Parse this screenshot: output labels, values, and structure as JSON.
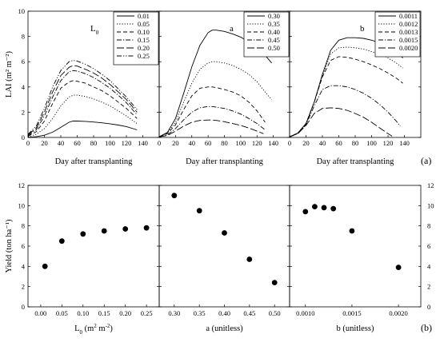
{
  "chart_data": [
    {
      "type": "line",
      "panel_label": "L",
      "panel_label_sub": "0",
      "xlabel": "Day after transplanting",
      "ylabel": "LAI (m² m⁻²)",
      "xlim": [
        0,
        160
      ],
      "ylim": [
        0,
        10
      ],
      "xticks": [
        0,
        20,
        40,
        60,
        80,
        100,
        120,
        140
      ],
      "yticks": [
        0,
        2,
        4,
        6,
        8,
        10
      ],
      "legend_position": "top-right",
      "series": [
        {
          "name": "0.01",
          "dash": "solid",
          "x": [
            0,
            10,
            20,
            30,
            40,
            50,
            55,
            60,
            70,
            80,
            90,
            100,
            110,
            120,
            133
          ],
          "y": [
            0.01,
            0.06,
            0.18,
            0.42,
            0.8,
            1.2,
            1.3,
            1.3,
            1.27,
            1.22,
            1.16,
            1.08,
            0.98,
            0.86,
            0.6
          ]
        },
        {
          "name": "0.05",
          "dash": "dot",
          "x": [
            0,
            10,
            20,
            30,
            40,
            50,
            55,
            60,
            70,
            80,
            90,
            100,
            110,
            120,
            133
          ],
          "y": [
            0.05,
            0.25,
            0.7,
            1.5,
            2.5,
            3.2,
            3.35,
            3.35,
            3.25,
            3.05,
            2.8,
            2.5,
            2.1,
            1.7,
            1.1
          ]
        },
        {
          "name": "0.10",
          "dash": "dash",
          "x": [
            0,
            10,
            20,
            30,
            40,
            50,
            55,
            60,
            70,
            80,
            90,
            100,
            110,
            120,
            133
          ],
          "y": [
            0.1,
            0.45,
            1.3,
            2.7,
            3.9,
            4.4,
            4.5,
            4.45,
            4.3,
            4.0,
            3.7,
            3.3,
            2.8,
            2.3,
            1.5
          ]
        },
        {
          "name": "0.15",
          "dash": "dashdot",
          "x": [
            0,
            10,
            20,
            30,
            40,
            50,
            55,
            60,
            70,
            80,
            90,
            100,
            110,
            120,
            133
          ],
          "y": [
            0.15,
            0.6,
            1.7,
            3.2,
            4.5,
            5.2,
            5.3,
            5.25,
            5.05,
            4.75,
            4.35,
            3.9,
            3.35,
            2.75,
            1.8
          ]
        },
        {
          "name": "0.20",
          "dash": "longdash",
          "x": [
            0,
            10,
            20,
            30,
            40,
            50,
            55,
            60,
            70,
            80,
            90,
            100,
            110,
            120,
            133
          ],
          "y": [
            0.2,
            0.75,
            2.0,
            3.6,
            4.9,
            5.55,
            5.7,
            5.65,
            5.4,
            5.1,
            4.7,
            4.2,
            3.6,
            3.0,
            2.0
          ]
        },
        {
          "name": "0.25",
          "dash": "dashdotdot",
          "x": [
            0,
            10,
            20,
            30,
            40,
            50,
            55,
            60,
            70,
            80,
            90,
            100,
            110,
            120,
            133
          ],
          "y": [
            0.25,
            0.9,
            2.3,
            4.0,
            5.3,
            6.0,
            6.1,
            6.05,
            5.8,
            5.45,
            5.0,
            4.5,
            3.85,
            3.2,
            2.2
          ]
        }
      ]
    },
    {
      "type": "line",
      "panel_label": "a",
      "xlabel": "Day after transplanting",
      "xlim": [
        0,
        160
      ],
      "ylim": [
        0,
        10
      ],
      "xticks": [
        0,
        20,
        40,
        60,
        80,
        100,
        120,
        140
      ],
      "yticks": [
        0,
        2,
        4,
        6,
        8,
        10
      ],
      "legend_position": "top-right",
      "series": [
        {
          "name": "0.30",
          "dash": "solid",
          "x": [
            0,
            10,
            20,
            30,
            40,
            50,
            60,
            65,
            70,
            80,
            90,
            100,
            110,
            120,
            130,
            138
          ],
          "y": [
            0.05,
            0.4,
            1.5,
            3.5,
            5.6,
            7.3,
            8.3,
            8.5,
            8.5,
            8.4,
            8.2,
            7.95,
            7.55,
            7.1,
            6.5,
            5.9
          ]
        },
        {
          "name": "0.35",
          "dash": "dot",
          "x": [
            0,
            10,
            20,
            30,
            40,
            50,
            60,
            65,
            70,
            80,
            90,
            100,
            110,
            120,
            130,
            138
          ],
          "y": [
            0.05,
            0.35,
            1.2,
            2.8,
            4.3,
            5.4,
            5.9,
            6.0,
            6.0,
            5.9,
            5.7,
            5.4,
            5.0,
            4.4,
            3.6,
            3.0
          ]
        },
        {
          "name": "0.40",
          "dash": "dash",
          "x": [
            0,
            10,
            20,
            30,
            40,
            50,
            60,
            65,
            70,
            80,
            90,
            100,
            110,
            120,
            130
          ],
          "y": [
            0.05,
            0.3,
            1.0,
            2.2,
            3.3,
            3.9,
            4.0,
            4.0,
            3.95,
            3.8,
            3.6,
            3.3,
            2.8,
            2.1,
            1.2
          ]
        },
        {
          "name": "0.45",
          "dash": "dashdot",
          "x": [
            0,
            10,
            20,
            30,
            40,
            50,
            60,
            65,
            70,
            80,
            90,
            100,
            110,
            120,
            130
          ],
          "y": [
            0.05,
            0.2,
            0.7,
            1.4,
            2.0,
            2.35,
            2.45,
            2.45,
            2.4,
            2.3,
            2.1,
            1.85,
            1.5,
            1.1,
            0.6
          ]
        },
        {
          "name": "0.50",
          "dash": "longdash",
          "x": [
            0,
            10,
            20,
            30,
            40,
            50,
            60,
            65,
            70,
            80,
            90,
            100,
            110,
            120,
            128
          ],
          "y": [
            0.05,
            0.15,
            0.5,
            0.9,
            1.2,
            1.35,
            1.38,
            1.38,
            1.35,
            1.25,
            1.1,
            0.95,
            0.75,
            0.5,
            0.3
          ]
        }
      ]
    },
    {
      "type": "line",
      "panel_label": "b",
      "xlabel": "Day after transplanting",
      "xlim": [
        0,
        160
      ],
      "ylim": [
        0,
        10
      ],
      "xticks": [
        0,
        20,
        40,
        60,
        80,
        100,
        120,
        140
      ],
      "yticks": [
        0,
        2,
        4,
        6,
        8,
        10
      ],
      "legend_position": "top-right",
      "series": [
        {
          "name": "0.0011",
          "dash": "solid",
          "x": [
            0,
            10,
            20,
            30,
            40,
            50,
            60,
            70,
            80,
            90,
            100,
            110,
            120,
            130,
            138
          ],
          "y": [
            0.05,
            0.35,
            1.1,
            2.8,
            5.0,
            6.9,
            7.7,
            7.9,
            7.9,
            7.85,
            7.7,
            7.5,
            7.2,
            6.8,
            6.3
          ]
        },
        {
          "name": "0.0012",
          "dash": "dot",
          "x": [
            0,
            10,
            20,
            30,
            40,
            50,
            60,
            70,
            80,
            90,
            100,
            110,
            120,
            130,
            138
          ],
          "y": [
            0.05,
            0.35,
            1.1,
            2.8,
            4.9,
            6.6,
            7.1,
            7.15,
            7.1,
            7.0,
            6.8,
            6.6,
            6.3,
            5.9,
            5.5
          ]
        },
        {
          "name": "0.0013",
          "dash": "dash",
          "x": [
            0,
            10,
            20,
            30,
            40,
            50,
            60,
            70,
            80,
            90,
            100,
            110,
            120,
            130,
            138
          ],
          "y": [
            0.05,
            0.35,
            1.1,
            2.8,
            4.8,
            6.1,
            6.4,
            6.35,
            6.2,
            6.0,
            5.75,
            5.45,
            5.1,
            4.7,
            4.3
          ]
        },
        {
          "name": "0.0015",
          "dash": "dashdot",
          "x": [
            0,
            10,
            20,
            30,
            40,
            50,
            60,
            70,
            80,
            90,
            100,
            110,
            120,
            130,
            135
          ],
          "y": [
            0.05,
            0.3,
            1.0,
            2.5,
            3.8,
            4.1,
            4.1,
            4.0,
            3.8,
            3.5,
            3.1,
            2.6,
            2.0,
            1.3,
            0.9
          ]
        },
        {
          "name": "0.0020",
          "dash": "longdash",
          "x": [
            0,
            10,
            20,
            30,
            40,
            50,
            60,
            70,
            80,
            90,
            100,
            110,
            120,
            125
          ],
          "y": [
            0.05,
            0.3,
            0.95,
            1.9,
            2.3,
            2.35,
            2.3,
            2.15,
            1.9,
            1.6,
            1.2,
            0.75,
            0.3,
            0.1
          ]
        }
      ]
    },
    {
      "type": "scatter",
      "xlabel_base": "L",
      "xlabel_sub": "0",
      "xlabel_rest": " (m",
      "xlabel_sup": "2",
      "xlabel_rest2": " m",
      "xlabel_sup2": "-2",
      "xlabel_close": ")",
      "ylabel": "Yield (ton ha⁻¹)",
      "xlim": [
        -0.03,
        0.28
      ],
      "ylim": [
        0,
        12
      ],
      "xticks": [
        0.0,
        0.05,
        0.1,
        0.15,
        0.2,
        0.25
      ],
      "xtick_labels": [
        "0.00",
        "0.05",
        "0.10",
        "0.15",
        "0.20",
        "0.25"
      ],
      "yticks": [
        0,
        2,
        4,
        6,
        8,
        10,
        12
      ],
      "x": [
        0.01,
        0.05,
        0.1,
        0.15,
        0.2,
        0.25
      ],
      "y": [
        4.0,
        6.5,
        7.2,
        7.5,
        7.7,
        7.8
      ]
    },
    {
      "type": "scatter",
      "xlabel": "a (unitless)",
      "xlim": [
        0.27,
        0.53
      ],
      "ylim": [
        0,
        12
      ],
      "xticks": [
        0.3,
        0.35,
        0.4,
        0.45,
        0.5
      ],
      "xtick_labels": [
        "0.30",
        "0.35",
        "0.40",
        "0.45",
        "0.50"
      ],
      "yticks": [
        0,
        2,
        4,
        6,
        8,
        10,
        12
      ],
      "x": [
        0.3,
        0.35,
        0.4,
        0.45,
        0.5
      ],
      "y": [
        11.0,
        9.5,
        7.3,
        4.7,
        2.4
      ]
    },
    {
      "type": "scatter",
      "xlabel": "b (unitless)",
      "xlim": [
        0.00083,
        0.00224
      ],
      "ylim": [
        0,
        12
      ],
      "xticks": [
        0.001,
        0.0015,
        0.002
      ],
      "xtick_labels": [
        "0.0010",
        "0.0015",
        "0.0020"
      ],
      "yticks": [
        0,
        2,
        4,
        6,
        8,
        10,
        12
      ],
      "x": [
        0.001,
        0.0011,
        0.0012,
        0.0013,
        0.0015,
        0.002
      ],
      "y": [
        9.4,
        9.9,
        9.8,
        9.7,
        7.5,
        3.9
      ]
    }
  ],
  "figure_labels": {
    "top": "(a)",
    "bottom": "(b)"
  }
}
